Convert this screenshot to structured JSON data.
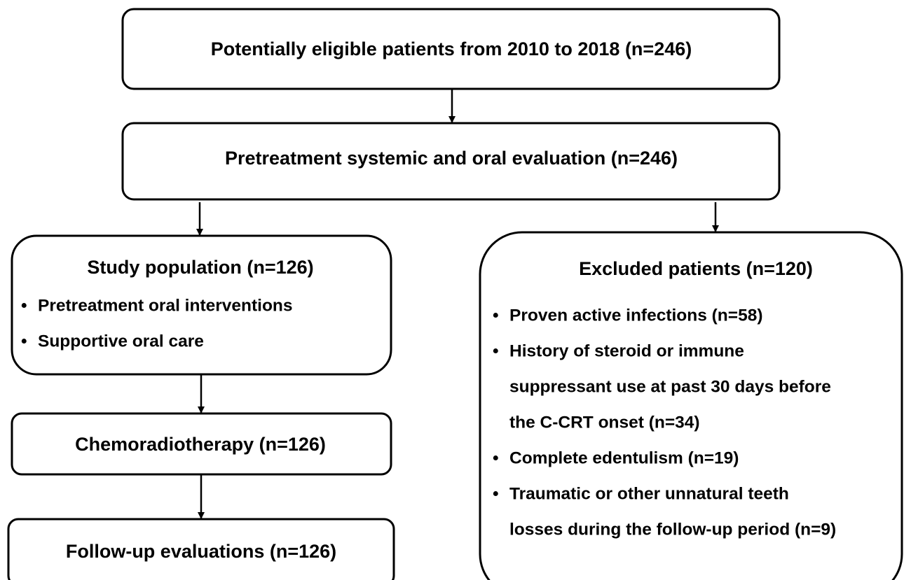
{
  "nodes": [
    {
      "label": "Potentially eligible patients from 2010 to 2018  (n=246)"
    },
    {
      "label": "Pretreatment systemic and oral evaluation (n=246)"
    },
    {
      "label": "Study population (n=126)",
      "items": [
        [
          "Pretreatment oral interventions"
        ],
        [
          "Supportive oral care"
        ]
      ]
    },
    {
      "label": "Excluded patients (n=120)",
      "items": [
        [
          "Proven active infections (n=58)"
        ],
        [
          "History of steroid or immune",
          "suppressant use at past 30 days before",
          "the C-CRT onset (n=34)"
        ],
        [
          "Complete edentulism (n=19)"
        ],
        [
          "Traumatic or other unnatural teeth",
          "losses during the follow-up period (n=9)"
        ]
      ]
    },
    {
      "label": "Chemoradiotherapy (n=126)"
    },
    {
      "label": "Follow-up evaluations (n=126)"
    }
  ]
}
